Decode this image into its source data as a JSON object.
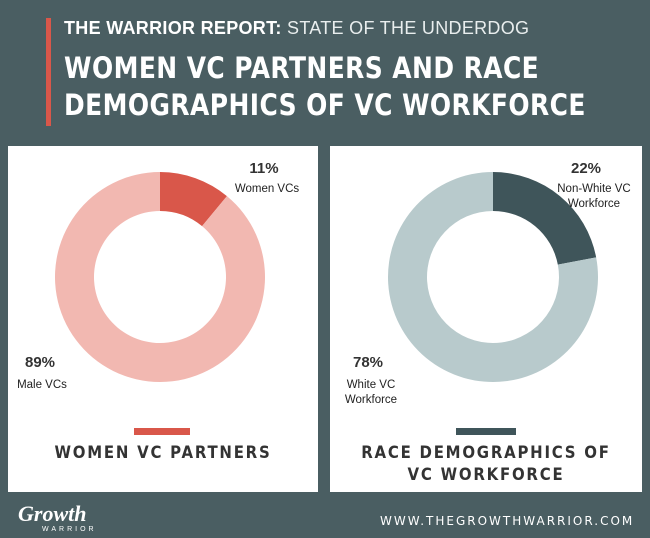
{
  "header": {
    "kicker_bold": "THE WARRIOR REPORT:",
    "kicker_light": "STATE OF THE UNDERDOG",
    "title_line1": "WOMEN VC PARTNERS AND RACE",
    "title_line2": "DEMOGRAPHICS OF VC WORKFORCE"
  },
  "footer": {
    "logo": "Growth",
    "logo_sub": "WARRIOR",
    "url": "WWW.THEGROWTHWARRIOR.COM"
  },
  "colors": {
    "background": "#4a5e62",
    "accent_red": "#d9574a",
    "light_red": "#f2b8b1",
    "dark_teal": "#3f555a",
    "light_teal": "#b8cacc"
  },
  "chart_data": [
    {
      "type": "pie",
      "donut": true,
      "title": "WOMEN VC PARTNERS",
      "slices": [
        {
          "label": "Women VCs",
          "value": 11,
          "display": "11%",
          "color": "#d9574a"
        },
        {
          "label": "Male VCs",
          "value": 89,
          "display": "89%",
          "color": "#f2b8b1"
        }
      ],
      "legend_color": "#d9574a"
    },
    {
      "type": "pie",
      "donut": true,
      "title_line1": "RACE DEMOGRAPHICS OF",
      "title_line2": "VC WORKFORCE",
      "slices": [
        {
          "label_line1": "Non-White VC",
          "label_line2": "Workforce",
          "value": 22,
          "display": "22%",
          "color": "#3f555a"
        },
        {
          "label_line1": "White VC",
          "label_line2": "Workforce",
          "value": 78,
          "display": "78%",
          "color": "#b8cacc"
        }
      ],
      "legend_color": "#3f555a"
    }
  ]
}
